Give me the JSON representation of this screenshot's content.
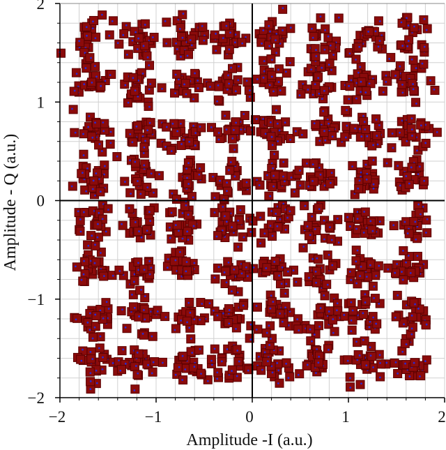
{
  "chart_data": {
    "type": "scatter",
    "title": "",
    "xlabel": "Amplitude -I (a.u.)",
    "ylabel": "Amplitude - Q (a.u.)",
    "xlim": [
      -2,
      2
    ],
    "ylim": [
      -2,
      2
    ],
    "x_ticks": [
      -2,
      -1,
      0,
      1,
      2
    ],
    "y_ticks": [
      -2,
      -1,
      0,
      1,
      2
    ],
    "x_tick_labels": [
      "−2",
      "−1",
      "0",
      "1",
      "2"
    ],
    "y_tick_labels": [
      "−2",
      "−1",
      "0",
      "1",
      "2"
    ],
    "grid": true,
    "legend": "none",
    "constellation": "64-QAM",
    "cluster_levels": [
      -1.65,
      -1.18,
      -0.7,
      -0.23,
      0.23,
      0.7,
      1.18,
      1.65
    ],
    "points_per_cluster": 22,
    "cluster_spread": 0.1,
    "marker_color": "#8b0b0b",
    "marker_border": "#5a0000",
    "inner_dot_color": "#2a2ad0",
    "axis_color": "#000000",
    "grid_color": "#d0d0d0"
  }
}
